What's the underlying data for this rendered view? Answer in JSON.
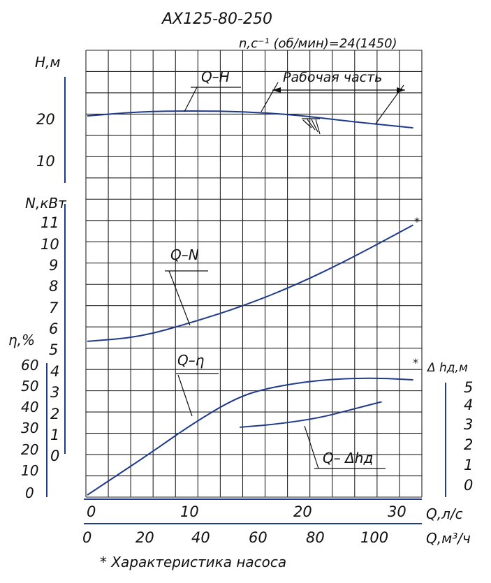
{
  "header": {
    "title": "АХ125-80-250",
    "subtitle": "n,c⁻¹ (об/мин)=24(1450)"
  },
  "footnote": "* Характеристика насоса",
  "axes": {
    "H": {
      "label": "Н,м",
      "ticks": [
        "10",
        "20"
      ]
    },
    "N": {
      "label": "N,кВт",
      "ticks": [
        "5",
        "6",
        "7",
        "8",
        "9",
        "10",
        "11"
      ]
    },
    "eta": {
      "label": "η,%",
      "ticks": [
        "0",
        "10",
        "20",
        "30",
        "40",
        "50",
        "60"
      ]
    },
    "left_small": {
      "ticks": [
        "0",
        "1",
        "2",
        "3",
        "4"
      ]
    },
    "dh": {
      "label": "Δ hд,м",
      "ticks": [
        "0",
        "1",
        "2",
        "3",
        "4",
        "5"
      ]
    },
    "Q_ls": {
      "label": "Q,л/с",
      "ticks": [
        "0",
        "10",
        "20",
        "30"
      ]
    },
    "Q_m3h": {
      "label": "Q,м³/ч",
      "ticks": [
        "0",
        "20",
        "40",
        "60",
        "80",
        "100"
      ]
    }
  },
  "labels": {
    "qh": "Q–H",
    "work": "Рабочая часть",
    "qn": "Q–N",
    "qeta": "Q–η",
    "qdh": "Q– Δhд",
    "star": "*"
  },
  "chart_data": {
    "type": "line",
    "title": "АХ125-80-250",
    "x": {
      "label": "Q,л/с",
      "range": [
        0,
        32.5
      ],
      "secondary_label": "Q,м³/ч",
      "secondary_range": [
        0,
        117
      ]
    },
    "series": [
      {
        "name": "Q–H",
        "axis": "H, м",
        "x": [
          0,
          5,
          10,
          15,
          20,
          25,
          31
        ],
        "values": [
          20.0,
          21.0,
          21.2,
          21.0,
          20.2,
          18.7,
          17.2
        ]
      },
      {
        "name": "Q–N",
        "axis": "N, кВт",
        "x": [
          0,
          5,
          10,
          15,
          20,
          25,
          31
        ],
        "values": [
          5.3,
          5.5,
          6.2,
          7.0,
          8.0,
          9.2,
          10.8
        ]
      },
      {
        "name": "Q–η",
        "axis": "η, %",
        "x": [
          0,
          3,
          6,
          10,
          14,
          17,
          22,
          27,
          31
        ],
        "values": [
          0,
          10,
          20,
          34,
          46,
          51,
          55,
          56,
          55
        ]
      },
      {
        "name": "Q– Δhд",
        "axis": "Δ hд, м",
        "x": [
          14.5,
          18,
          22,
          25,
          28
        ],
        "values": [
          3.05,
          3.2,
          3.5,
          3.9,
          4.3
        ]
      }
    ],
    "work_range_Q": [
      15.2,
      31
    ],
    "grid": true
  }
}
